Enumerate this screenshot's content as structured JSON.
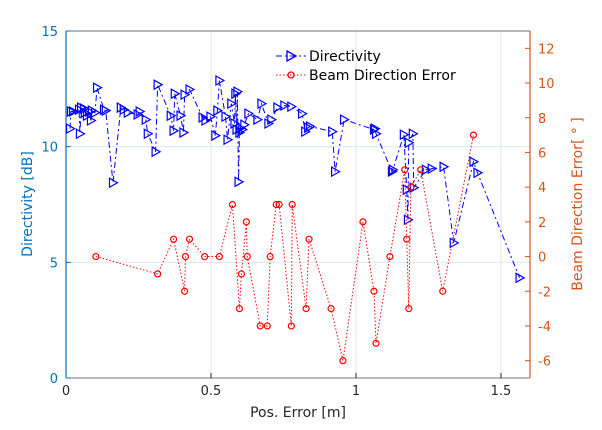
{
  "chart_data": {
    "type": "line",
    "xlabel": "Pos. Error [m]",
    "ylabel_left": "Directivity [dB]",
    "ylabel_right": "Beam Direction Error[ ° ]",
    "xlim": [
      0,
      1.6
    ],
    "ylim_left": [
      0,
      15
    ],
    "ylim_right": [
      -7,
      13
    ],
    "x_ticks": [
      "0",
      "0.5",
      "1",
      "1.5"
    ],
    "y_ticks_left": [
      "0",
      "5",
      "10",
      "15"
    ],
    "y_ticks_right": [
      "-6",
      "-4",
      "-2",
      "0",
      "2",
      "4",
      "6",
      "8",
      "10",
      "12"
    ],
    "grid": true,
    "legend_placement": "top",
    "colors": {
      "left_axis": "#0072BD",
      "right_axis": "#D95319",
      "directivity": "#0000FF",
      "beam_error": "#FF0000"
    },
    "series": [
      {
        "name": "Directivity",
        "axis": "left",
        "marker": "triangle-right",
        "line": "dash-dot",
        "x": [
          0.014,
          0.017,
          0.024,
          0.045,
          0.048,
          0.052,
          0.062,
          0.065,
          0.072,
          0.079,
          0.086,
          0.089,
          0.1,
          0.107,
          0.131,
          0.137,
          0.162,
          0.189,
          0.199,
          0.213,
          0.247,
          0.254,
          0.275,
          0.282,
          0.309,
          0.316,
          0.361,
          0.371,
          0.375,
          0.395,
          0.405,
          0.409,
          0.426,
          0.471,
          0.481,
          0.498,
          0.515,
          0.522,
          0.529,
          0.55,
          0.557,
          0.57,
          0.581,
          0.584,
          0.588,
          0.591,
          0.595,
          0.598,
          0.601,
          0.608,
          0.615,
          0.629,
          0.66,
          0.674,
          0.698,
          0.708,
          0.729,
          0.753,
          0.777,
          0.814,
          0.825,
          0.835,
          0.842,
          0.918,
          0.928,
          0.959,
          1.062,
          1.065,
          1.069,
          1.124,
          1.127,
          1.165,
          1.175,
          1.179,
          1.182,
          1.196,
          1.199,
          1.241,
          1.261,
          1.302,
          1.337,
          1.405,
          1.419,
          1.564
        ],
        "y": [
          10.78,
          11.52,
          11.52,
          11.6,
          10.56,
          11.69,
          11.65,
          11.47,
          11.34,
          11.52,
          11.13,
          11.56,
          11.47,
          12.55,
          11.6,
          11.56,
          8.44,
          11.69,
          11.6,
          11.47,
          11.39,
          11.52,
          11.17,
          10.56,
          9.78,
          12.68,
          11.34,
          10.69,
          12.29,
          11.34,
          10.61,
          12.25,
          12.47,
          11.26,
          11.13,
          11.3,
          10.48,
          11.56,
          12.86,
          11.3,
          10.3,
          11.86,
          11.0,
          12.29,
          10.74,
          12.38,
          8.48,
          10.61,
          10.8,
          10.74,
          10.95,
          11.43,
          11.17,
          11.86,
          11.0,
          11.17,
          11.69,
          11.78,
          11.73,
          11.43,
          10.65,
          10.82,
          10.87,
          10.65,
          8.92,
          11.17,
          10.74,
          10.78,
          10.56,
          8.92,
          9.0,
          10.52,
          8.14,
          6.84,
          10.17,
          10.56,
          8.23,
          9.0,
          9.05,
          9.13,
          5.84,
          9.35,
          8.87,
          4.33
        ]
      },
      {
        "name": "Beam Direction Error",
        "axis": "right",
        "marker": "circle",
        "line": "dotted",
        "x": [
          0.103,
          0.316,
          0.371,
          0.409,
          0.412,
          0.426,
          0.478,
          0.529,
          0.574,
          0.598,
          0.605,
          0.622,
          0.625,
          0.67,
          0.694,
          0.704,
          0.725,
          0.735,
          0.777,
          0.78,
          0.828,
          0.838,
          0.914,
          0.955,
          1.024,
          1.062,
          1.069,
          1.117,
          1.168,
          1.175,
          1.182,
          1.189,
          1.223,
          1.299,
          1.405
        ],
        "y": [
          0,
          -1,
          1,
          -2,
          0,
          1,
          0,
          0,
          3,
          -3,
          -1,
          2,
          0,
          -4,
          -4,
          0,
          3,
          3,
          -4,
          3,
          -3,
          1,
          -3,
          -6,
          2,
          -2,
          -5,
          0,
          5,
          1,
          -3,
          4,
          5,
          -2,
          7
        ]
      }
    ]
  }
}
